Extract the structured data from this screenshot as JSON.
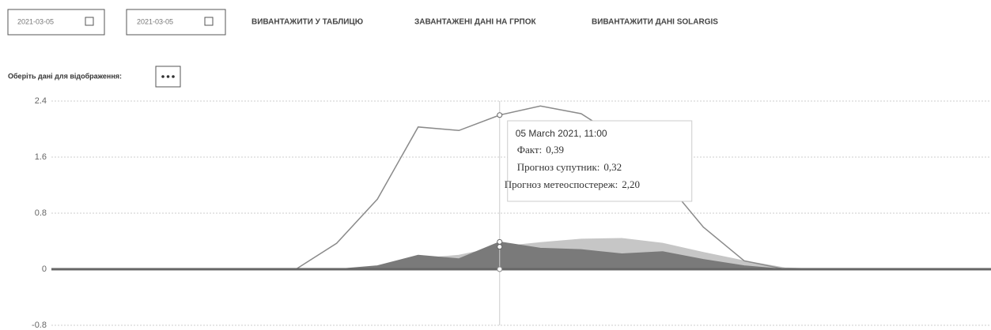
{
  "toolbar": {
    "date_from": "2021-03-05",
    "date_to": "2021-03-05",
    "buttons": [
      "ВИВАНТАЖИТИ У ТАБЛИЦЮ",
      "ЗАВАНТАЖЕНІ ДАНІ НА ГРПОК",
      "ВИВАНТАЖИТИ ДАНІ SOLARGIS"
    ],
    "select_label": "Оберіть дані для відображення:"
  },
  "chart_data": {
    "type": "area",
    "categories": [
      null,
      null,
      null,
      null,
      null,
      null,
      null,
      null,
      null,
      null,
      null,
      null,
      null,
      null,
      null,
      null,
      null,
      null,
      null,
      null,
      null,
      null,
      null,
      null
    ],
    "series": [
      {
        "color": "#c6c6c6",
        "kind": "area",
        "values": [
          0,
          0,
          0,
          0,
          0,
          0,
          0,
          0,
          0.02,
          0.15,
          0.2,
          0.32,
          0.38,
          0.43,
          0.44,
          0.37,
          0.24,
          0.12,
          0.02,
          0,
          0,
          0,
          0,
          0
        ]
      },
      {
        "color": "#7a7a7a",
        "kind": "area",
        "values": [
          0,
          0,
          0,
          0,
          0,
          0,
          0,
          0,
          0.05,
          0.2,
          0.15,
          0.39,
          0.3,
          0.28,
          0.22,
          0.25,
          0.14,
          0.05,
          0,
          0,
          0,
          0,
          0,
          0
        ]
      },
      {
        "color": "#8a8a8a",
        "kind": "line",
        "values": [
          0,
          0,
          0,
          0,
          0,
          0,
          0,
          0.37,
          1.0,
          2.03,
          1.98,
          2.2,
          2.33,
          2.22,
          1.85,
          1.3,
          0.6,
          0.12,
          0,
          0,
          0,
          0,
          0,
          0
        ]
      }
    ],
    "ylim": [
      -0.8,
      2.4
    ],
    "yticks": [
      2.4,
      1.6,
      0.8,
      0,
      -0.8
    ],
    "grid": true,
    "highlight_index": 11,
    "tooltip": {
      "title": "05 March 2021, 11:00",
      "rows": [
        {
          "label": "Факт:",
          "value": "0,39"
        },
        {
          "label": "Прогноз супутник:",
          "value": "0,32"
        },
        {
          "label": "Прогноз метеоспостереж:",
          "value": "2,20"
        }
      ]
    }
  }
}
